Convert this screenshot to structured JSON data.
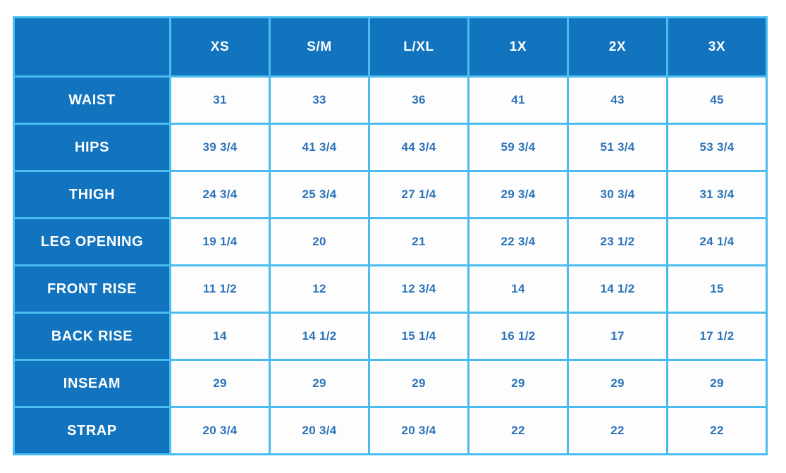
{
  "colors": {
    "table-blue": "#1273BE",
    "grid-cyan": "#4ABDEE",
    "value-text": "#2B73B9",
    "header-text": "#FFFFFF",
    "page-bg": "#FFFFFF",
    "cell-bg": "#FDFDFE"
  },
  "chart_data": {
    "type": "table",
    "title": "",
    "columns": [
      "",
      "XS",
      "S/M",
      "L/XL",
      "1X",
      "2X",
      "3X"
    ],
    "rows": [
      {
        "label": "WAIST",
        "values": [
          "31",
          "33",
          "36",
          "41",
          "43",
          "45"
        ]
      },
      {
        "label": "HIPS",
        "values": [
          "39 3/4",
          "41 3/4",
          "44 3/4",
          "59 3/4",
          "51 3/4",
          "53 3/4"
        ]
      },
      {
        "label": "THIGH",
        "values": [
          "24 3/4",
          "25 3/4",
          "27 1/4",
          "29 3/4",
          "30 3/4",
          "31 3/4"
        ]
      },
      {
        "label": "LEG OPENING",
        "values": [
          "19 1/4",
          "20",
          "21",
          "22 3/4",
          "23 1/2",
          "24 1/4"
        ]
      },
      {
        "label": "FRONT RISE",
        "values": [
          "11 1/2",
          "12",
          "12 3/4",
          "14",
          "14 1/2",
          "15"
        ]
      },
      {
        "label": "BACK RISE",
        "values": [
          "14",
          "14 1/2",
          "15 1/4",
          "16 1/2",
          "17",
          "17 1/2"
        ]
      },
      {
        "label": "INSEAM",
        "values": [
          "29",
          "29",
          "29",
          "29",
          "29",
          "29"
        ]
      },
      {
        "label": "STRAP",
        "values": [
          "20 3/4",
          "20 3/4",
          "20 3/4",
          "22",
          "22",
          "22"
        ]
      }
    ]
  }
}
